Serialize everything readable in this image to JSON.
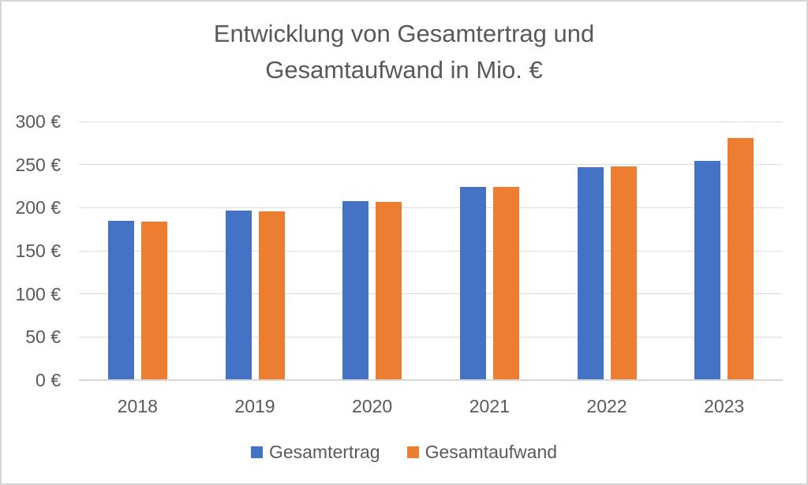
{
  "chart_data": {
    "type": "bar",
    "title": "Entwicklung von Gesamtertrag und Gesamtaufwand in Mio. €",
    "title_lines": [
      "Entwicklung von Gesamtertrag und",
      "Gesamtaufwand in Mio. €"
    ],
    "categories": [
      "2018",
      "2019",
      "2020",
      "2021",
      "2022",
      "2023"
    ],
    "series": [
      {
        "name": "Gesamtertrag",
        "color": "#4472C4",
        "values": [
          185,
          197,
          208,
          224,
          247,
          254
        ]
      },
      {
        "name": "Gesamtaufwand",
        "color": "#ED7D31",
        "values": [
          184,
          196,
          207,
          224,
          248,
          281
        ]
      }
    ],
    "yticks": [
      0,
      50,
      100,
      150,
      200,
      250,
      300
    ],
    "ytick_labels": [
      "0 €",
      "50 €",
      "100 €",
      "150 €",
      "200 €",
      "250 €",
      "300 €"
    ],
    "ylim": [
      0,
      300
    ],
    "xlabel": "",
    "ylabel": "",
    "grid": "horizontal",
    "legend_position": "bottom",
    "colors": {
      "text": "#595959",
      "gridline": "#DCDCDC",
      "axis_line": "#D7D7D7",
      "background": "#FFFFFF",
      "border": "#D5D5D5"
    }
  }
}
